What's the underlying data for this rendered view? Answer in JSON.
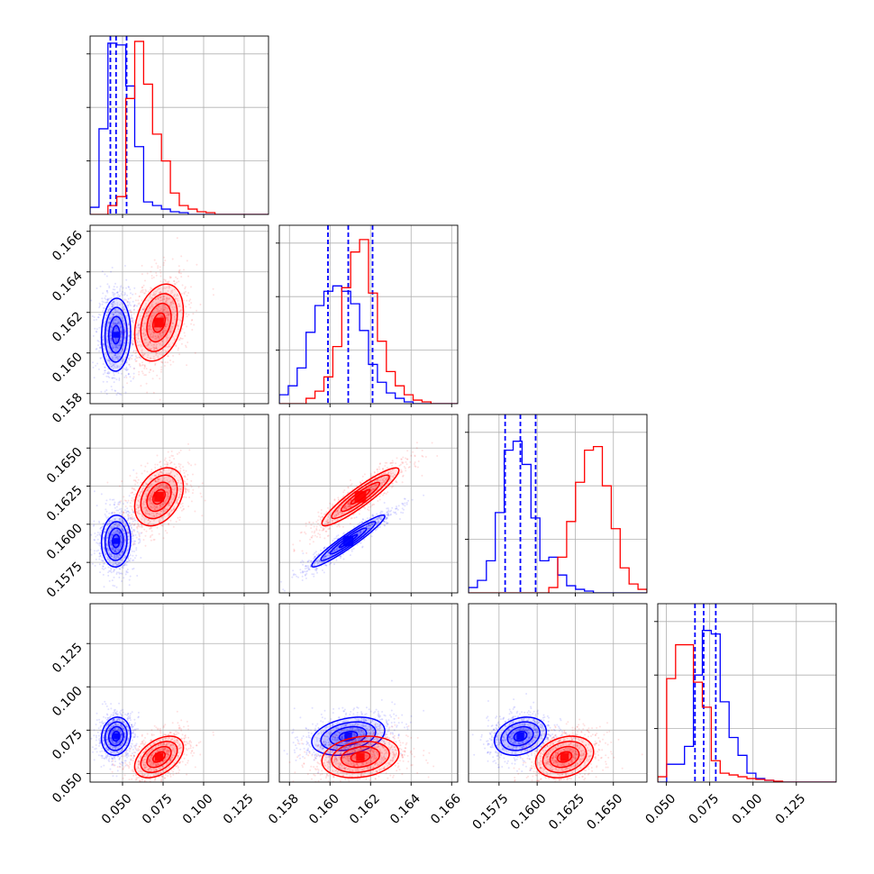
{
  "chart_data": {
    "type": "corner",
    "grid": true,
    "parameters": [
      {
        "ticks": [
          0.05,
          0.075,
          0.1,
          0.125
        ],
        "tick_labels": [
          "0.050",
          "0.075",
          "0.100",
          "0.125"
        ],
        "range": [
          0.03,
          0.14
        ]
      },
      {
        "ticks": [
          0.158,
          0.16,
          0.162,
          0.164,
          0.166
        ],
        "tick_labels": [
          "0.158",
          "0.160",
          "0.162",
          "0.164",
          "0.166"
        ],
        "range": [
          0.1575,
          0.1663
        ]
      },
      {
        "ticks": [
          0.1575,
          0.16,
          0.1625,
          0.165
        ],
        "tick_labels": [
          "0.1575",
          "0.1600",
          "0.1625",
          "0.1650"
        ],
        "range": [
          0.1555,
          0.1672
        ]
      },
      {
        "ticks": [
          0.05,
          0.075,
          0.1,
          0.125
        ],
        "tick_labels": [
          "0.050",
          "0.075",
          "0.100",
          "0.125"
        ],
        "range": [
          0.045,
          0.148
        ]
      }
    ],
    "series": [
      {
        "color": "#0000ff",
        "mean": [
          0.046,
          0.1609,
          0.1589,
          0.0715
        ],
        "std": [
          0.0045,
          0.0009,
          0.00085,
          0.0055
        ],
        "corr": [
          [
            1,
            0.05,
            0.05,
            0.1
          ],
          [
            0.05,
            1,
            0.95,
            0.3
          ],
          [
            0.05,
            0.95,
            1,
            0.25
          ],
          [
            0.1,
            0.3,
            0.25,
            1
          ]
        ],
        "quantile_lines": [
          [
            0.0425,
            0.046,
            0.0525
          ],
          [
            0.1599,
            0.1609,
            0.1621
          ],
          [
            0.1579,
            0.1589,
            0.1599
          ],
          [
            0.0665,
            0.0715,
            0.0785
          ]
        ],
        "histograms": [
          [
            0.04,
            0.48,
            0.96,
            0.95,
            0.72,
            0.38,
            0.07,
            0.05,
            0.03,
            0.015,
            0.01,
            0,
            0,
            0,
            0,
            0,
            0,
            0,
            0,
            0
          ],
          [
            0.05,
            0.1,
            0.2,
            0.4,
            0.55,
            0.63,
            0.66,
            0.63,
            0.56,
            0.41,
            0.22,
            0.12,
            0.06,
            0.03,
            0.01,
            0,
            0,
            0,
            0,
            0
          ],
          [
            0.03,
            0.07,
            0.18,
            0.45,
            0.8,
            0.85,
            0.72,
            0.42,
            0.18,
            0.2,
            0.1,
            0.04,
            0.02,
            0.01,
            0,
            0,
            0,
            0,
            0,
            0
          ],
          [
            0,
            0.1,
            0.1,
            0.2,
            0.6,
            0.85,
            0.83,
            0.45,
            0.25,
            0.15,
            0.05,
            0.02,
            0.01,
            0,
            0,
            0,
            0,
            0,
            0,
            0
          ]
        ]
      },
      {
        "color": "#ff0000",
        "mean": [
          0.0725,
          0.1615,
          0.1618,
          0.0595
        ],
        "std": [
          0.0075,
          0.00095,
          0.00095,
          0.006
        ],
        "corr": [
          [
            1,
            0.3,
            0.35,
            0.45
          ],
          [
            0.3,
            1,
            0.92,
            0.2
          ],
          [
            0.35,
            0.92,
            1,
            0.25
          ],
          [
            0.45,
            0.2,
            0.25,
            1
          ]
        ],
        "quantile_lines": [],
        "histograms": [
          [
            0,
            0,
            0.05,
            0.1,
            0.65,
            0.97,
            0.73,
            0.45,
            0.3,
            0.12,
            0.05,
            0.03,
            0.015,
            0.01,
            0,
            0,
            0,
            0,
            0,
            0
          ],
          [
            0,
            0,
            0,
            0.03,
            0.07,
            0.15,
            0.32,
            0.65,
            0.85,
            0.92,
            0.62,
            0.35,
            0.18,
            0.1,
            0.05,
            0.02,
            0.01,
            0,
            0,
            0
          ],
          [
            0,
            0,
            0,
            0,
            0,
            0,
            0,
            0,
            0,
            0.03,
            0.2,
            0.4,
            0.62,
            0.8,
            0.82,
            0.6,
            0.36,
            0.14,
            0.05,
            0.02
          ],
          [
            0.03,
            0.58,
            0.77,
            0.77,
            0.56,
            0.42,
            0.12,
            0.05,
            0.04,
            0.03,
            0.02,
            0.015,
            0.01,
            0.005,
            0,
            0,
            0,
            0,
            0,
            0
          ]
        ]
      }
    ],
    "contour_levels_sigma": [
      0.5,
      1.0,
      1.5,
      2.0
    ]
  }
}
